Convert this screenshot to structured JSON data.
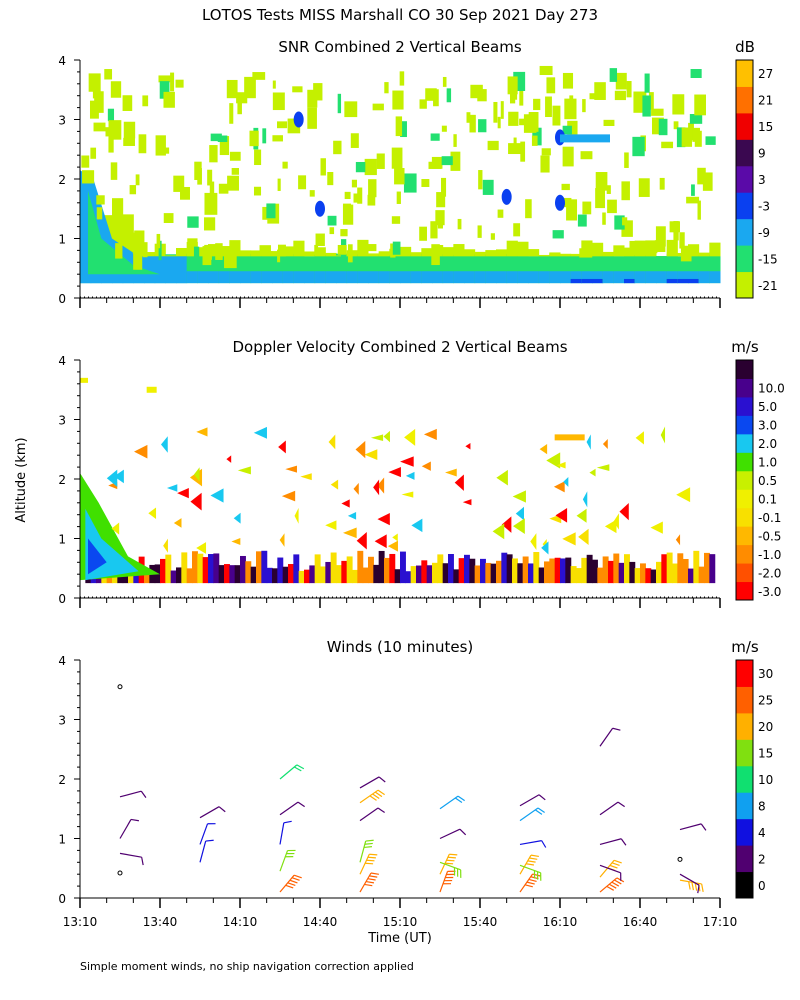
{
  "figure_title": "LOTOS Tests MISS Marshall CO  30 Sep 2021 Day 273",
  "ylabel": "Altitude (km)",
  "xlabel": "Time (UT)",
  "footnote": "Simple moment winds, no ship navigation correction applied",
  "chart_data": [
    {
      "type": "heatmap",
      "title": "SNR Combined 2 Vertical Beams",
      "units": "dB",
      "xlim_minutes": [
        0,
        240
      ],
      "ylim": [
        0,
        4
      ],
      "yticks": [
        "0",
        "1",
        "2",
        "3",
        "4"
      ],
      "colorbar": {
        "labels": [
          "-21",
          "-15",
          "-9",
          "-3",
          "3",
          "9",
          "15",
          "21",
          "27"
        ],
        "colors": [
          "#c4f000",
          "#22e070",
          "#1aa8f0",
          "#0a40f0",
          "#5a0aa8",
          "#3a0850",
          "#f00000",
          "#ff7000",
          "#ffc000"
        ]
      },
      "approx_fields": [
        {
          "level": "-15",
          "desc": "continuous layer 0.25-0.7 km"
        },
        {
          "level": "-9",
          "desc": "boundary layer wedge near 13:10, 0-2.1 km"
        },
        {
          "level": "-21",
          "desc": "scattered echoes 0.7-4 km"
        },
        {
          "level": "-3",
          "desc": "patches near 1.6 km and 0.3 km"
        }
      ]
    },
    {
      "type": "heatmap",
      "title": "Doppler Velocity Combined 2 Vertical Beams",
      "units": "m/s",
      "xlim_minutes": [
        0,
        240
      ],
      "ylim": [
        0,
        4
      ],
      "yticks": [
        "0",
        "1",
        "2",
        "3",
        "4"
      ],
      "colorbar": {
        "labels": [
          "-3.0",
          "-2.0",
          "-1.0",
          "-0.5",
          "-0.1",
          "0.1",
          "0.5",
          "1.0",
          "2.0",
          "3.0",
          "5.0",
          "10.0"
        ],
        "colors": [
          "#ff0000",
          "#ff5000",
          "#ff8c00",
          "#ffb800",
          "#f8e000",
          "#f0f000",
          "#c8f000",
          "#40e000",
          "#18c8f0",
          "#0a48f0",
          "#2a10d0",
          "#48008c",
          "#2a0030"
        ]
      },
      "approx_fields": [
        {
          "level": "0.5",
          "desc": "boundary layer wedge near 13:10, 0.3-2.1 km"
        },
        {
          "level": "5.0",
          "desc": "banded layer 0.25-0.7 km across full period"
        },
        {
          "level": "-0.1",
          "desc": "scattered patches 0.7-3.7 km"
        }
      ]
    },
    {
      "type": "scatter",
      "title": "Winds (10 minutes)",
      "units": "m/s",
      "xlabel": "Time (UT)",
      "xticks": [
        "13:10",
        "13:40",
        "14:10",
        "14:40",
        "15:10",
        "15:40",
        "16:10",
        "16:40",
        "17:10"
      ],
      "xlim_minutes": [
        0,
        240
      ],
      "ylim": [
        0,
        4
      ],
      "yticks": [
        "0",
        "1",
        "2",
        "3",
        "4"
      ],
      "colorbar": {
        "labels": [
          "0",
          "2",
          "4",
          "8",
          "10",
          "15",
          "20",
          "25",
          "30"
        ],
        "colors": [
          "#000000",
          "#500070",
          "#1010e0",
          "#10a0f0",
          "#10e070",
          "#80e010",
          "#ffb000",
          "#ff6000",
          "#ff0000"
        ]
      },
      "profiles": [
        {
          "time_min": 15,
          "barbs": [
            [
              0.42,
              0,
              0
            ],
            [
              0.75,
              2,
              100
            ],
            [
              1.0,
              3,
              30
            ],
            [
              1.7,
              3,
              75
            ],
            [
              3.55,
              0,
              0
            ]
          ]
        },
        {
          "time_min": 45,
          "barbs": [
            [
              0.6,
              5,
              15
            ],
            [
              0.9,
              4,
              20
            ],
            [
              1.35,
              3,
              60
            ]
          ]
        },
        {
          "time_min": 75,
          "barbs": [
            [
              0.1,
              25,
              40
            ],
            [
              0.45,
              17,
              20
            ],
            [
              0.9,
              4,
              10
            ],
            [
              1.4,
              3,
              55
            ],
            [
              2.0,
              12,
              50
            ]
          ]
        },
        {
          "time_min": 105,
          "barbs": [
            [
              0.1,
              25,
              30
            ],
            [
              0.4,
              22,
              25
            ],
            [
              0.6,
              15,
              15
            ],
            [
              1.3,
              3,
              55
            ],
            [
              1.6,
              20,
              55
            ],
            [
              1.85,
              3,
              60
            ]
          ]
        },
        {
          "time_min": 135,
          "barbs": [
            [
              0.1,
              26,
              20
            ],
            [
              0.4,
              22,
              25
            ],
            [
              0.6,
              15,
              110
            ],
            [
              1.0,
              3,
              65
            ],
            [
              1.5,
              8,
              55
            ]
          ]
        },
        {
          "time_min": 165,
          "barbs": [
            [
              0.1,
              26,
              35
            ],
            [
              0.4,
              21,
              30
            ],
            [
              0.55,
              15,
              110
            ],
            [
              0.9,
              4,
              80
            ],
            [
              1.3,
              8,
              55
            ],
            [
              1.55,
              3,
              60
            ]
          ]
        },
        {
          "time_min": 195,
          "barbs": [
            [
              0.1,
              25,
              50
            ],
            [
              0.35,
              22,
              40
            ],
            [
              0.55,
              3,
              110
            ],
            [
              0.9,
              3,
              75
            ],
            [
              1.4,
              3,
              55
            ],
            [
              2.55,
              3,
              35
            ]
          ]
        },
        {
          "time_min": 225,
          "barbs": [
            [
              0.3,
              24,
              100
            ],
            [
              0.4,
              3,
              120
            ],
            [
              0.65,
              0,
              90
            ],
            [
              1.15,
              3,
              75
            ]
          ]
        }
      ]
    }
  ]
}
